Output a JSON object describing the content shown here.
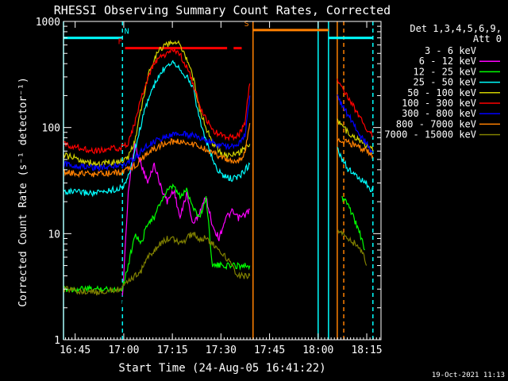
{
  "chart_data": {
    "type": "line",
    "title": "RHESSI Observing Summary Count Rates, Corrected",
    "xlabel": "Start Time (24-Aug-05 16:41:22)",
    "ylabel": "Corrected Count Rate (s⁻¹ detector⁻¹)",
    "x_units": "minutes since 16:41:22",
    "xlim": [
      0,
      98
    ],
    "ylim": [
      1,
      1000
    ],
    "yscale": "log",
    "x_ticks": [
      {
        "label": "16:45",
        "t": 3.6
      },
      {
        "label": "17:00",
        "t": 18.6
      },
      {
        "label": "17:15",
        "t": 33.6
      },
      {
        "label": "17:30",
        "t": 48.6
      },
      {
        "label": "17:45",
        "t": 63.6
      },
      {
        "label": "18:00",
        "t": 78.6
      },
      {
        "label": "18:15",
        "t": 93.6
      }
    ],
    "y_ticks": [
      {
        "label": "1",
        "v": 1
      },
      {
        "label": "10",
        "v": 10
      },
      {
        "label": "100",
        "v": 100
      },
      {
        "label": "1000",
        "v": 1000
      }
    ],
    "legend_header": [
      "Det 1,3,4,5,6,9,",
      "Att 0"
    ],
    "footer_date": "19-Oct-2021 11:13",
    "segments": [
      [
        0,
        57.5
      ],
      [
        84.5,
        95.5
      ]
    ],
    "series": [
      {
        "name": "3 - 6 keV",
        "color": "#000000",
        "points": [
          [
            18.2,
            2
          ],
          [
            20,
            15
          ],
          [
            22,
            22
          ],
          [
            24,
            17
          ],
          [
            26,
            30
          ],
          [
            28,
            22
          ],
          [
            30,
            35
          ],
          [
            32,
            22
          ],
          [
            34,
            20
          ],
          [
            36,
            17
          ],
          [
            38,
            26
          ],
          [
            40,
            20
          ],
          [
            42,
            14
          ],
          [
            44,
            22
          ],
          [
            46,
            14
          ],
          [
            48,
            10
          ],
          [
            50,
            12
          ],
          [
            52,
            18
          ],
          [
            54,
            14
          ],
          [
            56,
            16
          ],
          [
            57.5,
            18
          ]
        ],
        "points2": []
      },
      {
        "name": "6 - 12 keV",
        "color": "#ff00ff",
        "points": [
          [
            18.2,
            2.5
          ],
          [
            20,
            25
          ],
          [
            22,
            70
          ],
          [
            24,
            45
          ],
          [
            26,
            30
          ],
          [
            28,
            45
          ],
          [
            30,
            28
          ],
          [
            32,
            20
          ],
          [
            34,
            26
          ],
          [
            36,
            14
          ],
          [
            38,
            24
          ],
          [
            40,
            12
          ],
          [
            42,
            16
          ],
          [
            44,
            22
          ],
          [
            46,
            12
          ],
          [
            48,
            9
          ],
          [
            50,
            14
          ],
          [
            52,
            16
          ],
          [
            54,
            14
          ],
          [
            56,
            15
          ],
          [
            57.5,
            17
          ]
        ],
        "points2": []
      },
      {
        "name": "12 - 25 keV",
        "color": "#00ff00",
        "points": [
          [
            0,
            3
          ],
          [
            18,
            3
          ],
          [
            20,
            5
          ],
          [
            22,
            10
          ],
          [
            24,
            8
          ],
          [
            26,
            13
          ],
          [
            28,
            14
          ],
          [
            30,
            20
          ],
          [
            32,
            25
          ],
          [
            34,
            28
          ],
          [
            36,
            22
          ],
          [
            38,
            26
          ],
          [
            40,
            18
          ],
          [
            42,
            14
          ],
          [
            44,
            22
          ],
          [
            46,
            5
          ],
          [
            48,
            5
          ],
          [
            50,
            5
          ],
          [
            52,
            5
          ],
          [
            54,
            5
          ],
          [
            56,
            5
          ],
          [
            57.5,
            5
          ]
        ],
        "points2": [
          [
            86,
            22
          ],
          [
            88,
            18
          ],
          [
            90,
            13
          ],
          [
            92,
            9
          ],
          [
            93,
            7
          ]
        ]
      },
      {
        "name": "25 - 50 keV",
        "color": "#00ffff",
        "points": [
          [
            0,
            25
          ],
          [
            10,
            24
          ],
          [
            18,
            27
          ],
          [
            20,
            34
          ],
          [
            22,
            60
          ],
          [
            24,
            110
          ],
          [
            26,
            180
          ],
          [
            28,
            250
          ],
          [
            30,
            320
          ],
          [
            32,
            400
          ],
          [
            34,
            420
          ],
          [
            36,
            360
          ],
          [
            38,
            300
          ],
          [
            40,
            240
          ],
          [
            42,
            120
          ],
          [
            44,
            75
          ],
          [
            46,
            50
          ],
          [
            48,
            38
          ],
          [
            50,
            34
          ],
          [
            52,
            33
          ],
          [
            54,
            34
          ],
          [
            56,
            40
          ],
          [
            57.5,
            45
          ]
        ],
        "points2": [
          [
            84.5,
            65
          ],
          [
            86,
            50
          ],
          [
            88,
            40
          ],
          [
            90,
            36
          ],
          [
            92,
            32
          ],
          [
            94,
            28
          ],
          [
            95.5,
            25
          ]
        ]
      },
      {
        "name": "50 - 100 keV",
        "color": "#d0d000",
        "points": [
          [
            0,
            55
          ],
          [
            10,
            45
          ],
          [
            18,
            48
          ],
          [
            20,
            52
          ],
          [
            22,
            75
          ],
          [
            24,
            150
          ],
          [
            26,
            300
          ],
          [
            28,
            450
          ],
          [
            30,
            560
          ],
          [
            32,
            600
          ],
          [
            34,
            650
          ],
          [
            36,
            600
          ],
          [
            38,
            450
          ],
          [
            40,
            300
          ],
          [
            42,
            150
          ],
          [
            44,
            100
          ],
          [
            46,
            72
          ],
          [
            48,
            60
          ],
          [
            50,
            55
          ],
          [
            52,
            55
          ],
          [
            54,
            57
          ],
          [
            56,
            65
          ],
          [
            57.5,
            70
          ]
        ],
        "points2": [
          [
            84.5,
            120
          ],
          [
            86,
            100
          ],
          [
            88,
            90
          ],
          [
            90,
            80
          ],
          [
            92,
            72
          ],
          [
            94,
            68
          ],
          [
            95.5,
            60
          ]
        ]
      },
      {
        "name": "100 - 300 keV",
        "color": "#ff0000",
        "points": [
          [
            0,
            70
          ],
          [
            10,
            60
          ],
          [
            18,
            65
          ],
          [
            20,
            72
          ],
          [
            22,
            110
          ],
          [
            24,
            190
          ],
          [
            26,
            290
          ],
          [
            28,
            400
          ],
          [
            30,
            460
          ],
          [
            32,
            500
          ],
          [
            34,
            540
          ],
          [
            36,
            480
          ],
          [
            38,
            380
          ],
          [
            40,
            260
          ],
          [
            42,
            160
          ],
          [
            44,
            120
          ],
          [
            46,
            95
          ],
          [
            48,
            85
          ],
          [
            50,
            82
          ],
          [
            52,
            82
          ],
          [
            54,
            85
          ],
          [
            56,
            110
          ],
          [
            57.5,
            260
          ]
        ],
        "points2": [
          [
            84.5,
            280
          ],
          [
            86,
            230
          ],
          [
            88,
            190
          ],
          [
            90,
            150
          ],
          [
            92,
            115
          ],
          [
            94,
            95
          ],
          [
            95.5,
            82
          ]
        ]
      },
      {
        "name": "300 - 800 keV",
        "color": "#0000ff",
        "points": [
          [
            0,
            45
          ],
          [
            10,
            42
          ],
          [
            18,
            44
          ],
          [
            20,
            46
          ],
          [
            22,
            52
          ],
          [
            24,
            60
          ],
          [
            26,
            68
          ],
          [
            28,
            73
          ],
          [
            30,
            78
          ],
          [
            32,
            82
          ],
          [
            34,
            85
          ],
          [
            36,
            88
          ],
          [
            38,
            86
          ],
          [
            40,
            84
          ],
          [
            42,
            80
          ],
          [
            44,
            76
          ],
          [
            46,
            72
          ],
          [
            48,
            68
          ],
          [
            50,
            66
          ],
          [
            52,
            66
          ],
          [
            54,
            68
          ],
          [
            56,
            85
          ],
          [
            57.5,
            200
          ]
        ],
        "points2": [
          [
            84.5,
            200
          ],
          [
            86,
            160
          ],
          [
            88,
            130
          ],
          [
            90,
            105
          ],
          [
            92,
            80
          ],
          [
            94,
            68
          ],
          [
            95.5,
            58
          ]
        ]
      },
      {
        "name": "800 - 7000 keV",
        "color": "#ff8000",
        "points": [
          [
            0,
            38
          ],
          [
            10,
            36
          ],
          [
            18,
            38
          ],
          [
            20,
            40
          ],
          [
            22,
            44
          ],
          [
            24,
            50
          ],
          [
            26,
            57
          ],
          [
            28,
            63
          ],
          [
            30,
            68
          ],
          [
            32,
            72
          ],
          [
            34,
            74
          ],
          [
            36,
            74
          ],
          [
            38,
            72
          ],
          [
            40,
            70
          ],
          [
            42,
            66
          ],
          [
            44,
            62
          ],
          [
            46,
            58
          ],
          [
            48,
            54
          ],
          [
            50,
            50
          ],
          [
            52,
            48
          ],
          [
            54,
            48
          ],
          [
            56,
            58
          ],
          [
            57.5,
            110
          ]
        ],
        "points2": [
          [
            84.5,
            78
          ],
          [
            86,
            74
          ],
          [
            88,
            72
          ],
          [
            90,
            68
          ],
          [
            92,
            64
          ],
          [
            94,
            60
          ],
          [
            95.5,
            54
          ]
        ]
      },
      {
        "name": "7000 - 15000 keV",
        "color": "#808000",
        "points": [
          [
            0,
            3
          ],
          [
            10,
            2.8
          ],
          [
            18,
            3
          ],
          [
            20,
            3.5
          ],
          [
            22,
            4
          ],
          [
            24,
            4.5
          ],
          [
            26,
            6
          ],
          [
            28,
            7
          ],
          [
            30,
            8
          ],
          [
            32,
            9
          ],
          [
            34,
            9
          ],
          [
            36,
            8
          ],
          [
            38,
            9
          ],
          [
            40,
            10
          ],
          [
            42,
            9
          ],
          [
            44,
            9
          ],
          [
            46,
            8
          ],
          [
            48,
            7
          ],
          [
            50,
            6
          ],
          [
            52,
            5
          ],
          [
            54,
            4
          ],
          [
            56,
            4
          ],
          [
            57.5,
            4
          ]
        ],
        "points2": [
          [
            84.5,
            11
          ],
          [
            86,
            10
          ],
          [
            88,
            9
          ],
          [
            90,
            8
          ],
          [
            92,
            7
          ],
          [
            93.5,
            5
          ]
        ]
      }
    ],
    "vlines": [
      {
        "t": 0,
        "color": "#00ffff",
        "style": "solid"
      },
      {
        "t": 18.2,
        "color": "#00ffff",
        "style": "dashed"
      },
      {
        "t": 58.5,
        "color": "#ff8000",
        "style": "solid"
      },
      {
        "t": 78.6,
        "color": "#00ffff",
        "style": "solid"
      },
      {
        "t": 81.8,
        "color": "#00ffff",
        "style": "solid"
      },
      {
        "t": 84.5,
        "color": "#ff8000",
        "style": "solid"
      },
      {
        "t": 86.5,
        "color": "#ff8000",
        "style": "dashed"
      },
      {
        "t": 95.5,
        "color": "#00ffff",
        "style": "dashed"
      }
    ],
    "bars": [
      {
        "label": "N",
        "color": "#00ffff",
        "t0": 0,
        "t1": 18.2,
        "v": 700,
        "label_t": 19.5
      },
      {
        "label": "F",
        "color": "#ff0000",
        "t0": 19,
        "t1": 50.5,
        "v": 560,
        "label_t": 17.5,
        "extra": [
          52.5,
          55
        ]
      },
      {
        "label": "S",
        "color": "#ff8000",
        "t0": 58.5,
        "t1": 81.8,
        "v": 830,
        "label_t": 56.5
      },
      {
        "label": "",
        "color": "#00ffff",
        "t0": 81.8,
        "t1": 95.5,
        "v": 700,
        "label_t": 0
      }
    ]
  }
}
